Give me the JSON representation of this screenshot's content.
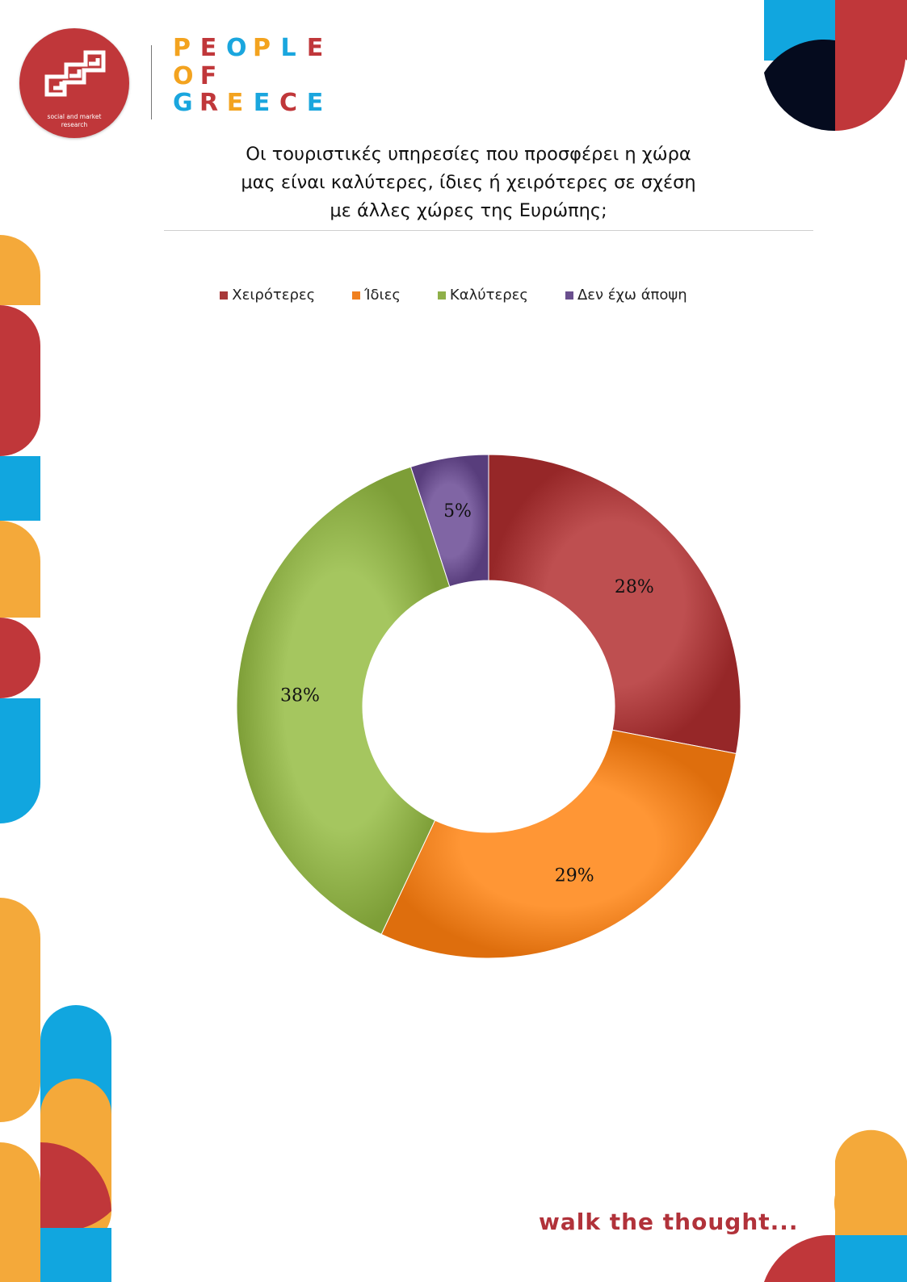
{
  "brand": {
    "logo_mark_caption": "social and market research",
    "logo_lines": [
      "PEOPLE",
      "OF",
      "GREECE"
    ],
    "letter_colors": {
      "PEOPLE": [
        "#f3a31f",
        "#c0373a",
        "#1aa6de",
        "#f3a31f",
        "#1aa6de",
        "#c0373a"
      ],
      "OF": [
        "#f3a31f",
        "#c0373a"
      ],
      "GREECE": [
        "#1aa6de",
        "#c0373a",
        "#f3a31f",
        "#1aa6de",
        "#c0373a",
        "#1aa6de"
      ]
    }
  },
  "title_lines": [
    "Οι τουριστικές υπηρεσίες που προσφέρει η χώρα",
    "μας είναι καλύτερες, ίδιες ή χειρότερες σε σχέση",
    "με άλλες χώρες της Ευρώπης;"
  ],
  "chart_data": {
    "type": "pie",
    "subtype": "donut",
    "categories": [
      "Χειρότερες",
      "Ίδιες",
      "Καλύτερες",
      "Δεν έχω άποψη"
    ],
    "values": [
      28,
      29,
      38,
      5
    ],
    "labels": [
      "28%",
      "29%",
      "38%",
      "5%"
    ],
    "colors": [
      "#a8393a",
      "#f0801f",
      "#8fb049",
      "#6a4f8e"
    ],
    "legend_position": "top",
    "start_angle_deg": 0,
    "direction": "clockwise"
  },
  "footer": {
    "tagline": "walk the thought..."
  },
  "decor_colors": {
    "orange": "#f4a93a",
    "red": "#c0373a",
    "blue": "#11a6df",
    "navy": "#050b1e"
  }
}
